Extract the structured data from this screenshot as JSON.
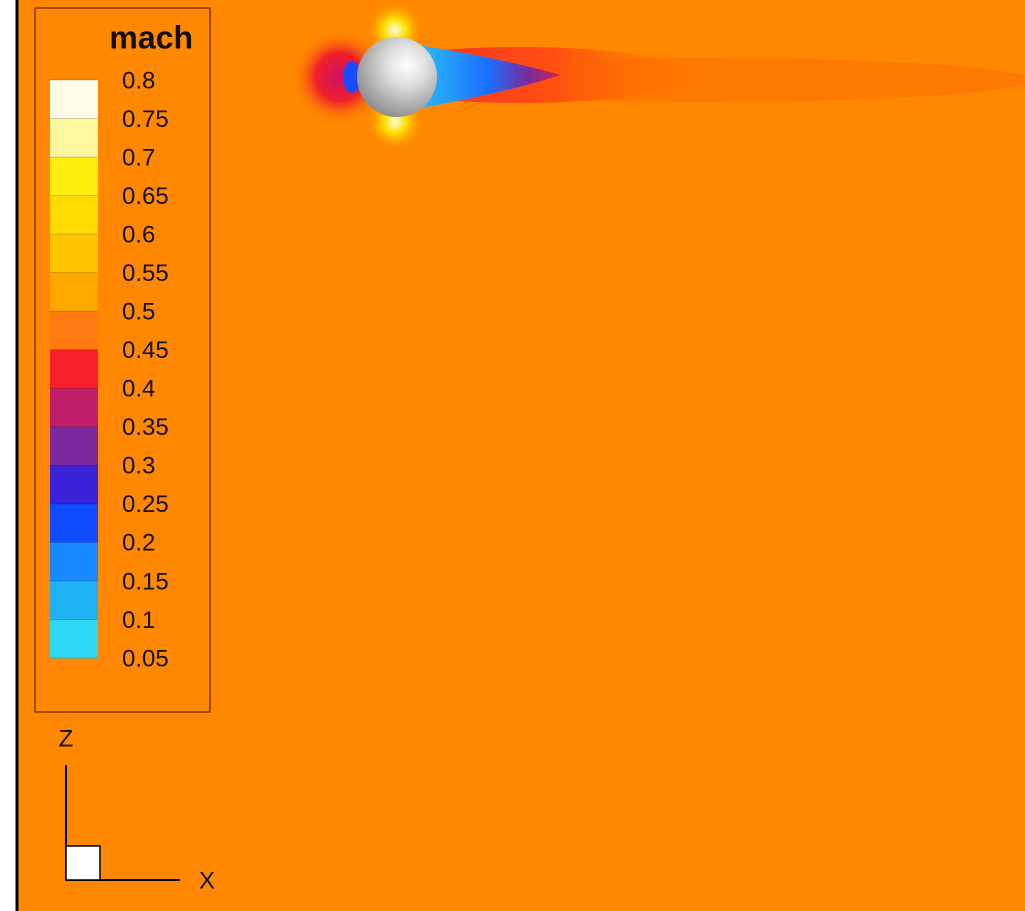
{
  "legend": {
    "title": "mach",
    "levels": [
      0.8,
      0.75,
      0.7,
      0.65,
      0.6,
      0.55,
      0.5,
      0.45,
      0.4,
      0.35,
      0.3,
      0.25,
      0.2,
      0.15,
      0.1,
      0.05
    ],
    "colors": [
      "#fffbe6",
      "#fff6a0",
      "#ffee10",
      "#ffdb00",
      "#ffc400",
      "#ffa800",
      "#ff7a10",
      "#f8202a",
      "#c0206a",
      "#7a2a9c",
      "#3a22d8",
      "#0f4cff",
      "#1a88ff",
      "#20b0f4",
      "#2ed8f2"
    ]
  },
  "axes": {
    "vertical": "Z",
    "horizontal": "X"
  }
}
